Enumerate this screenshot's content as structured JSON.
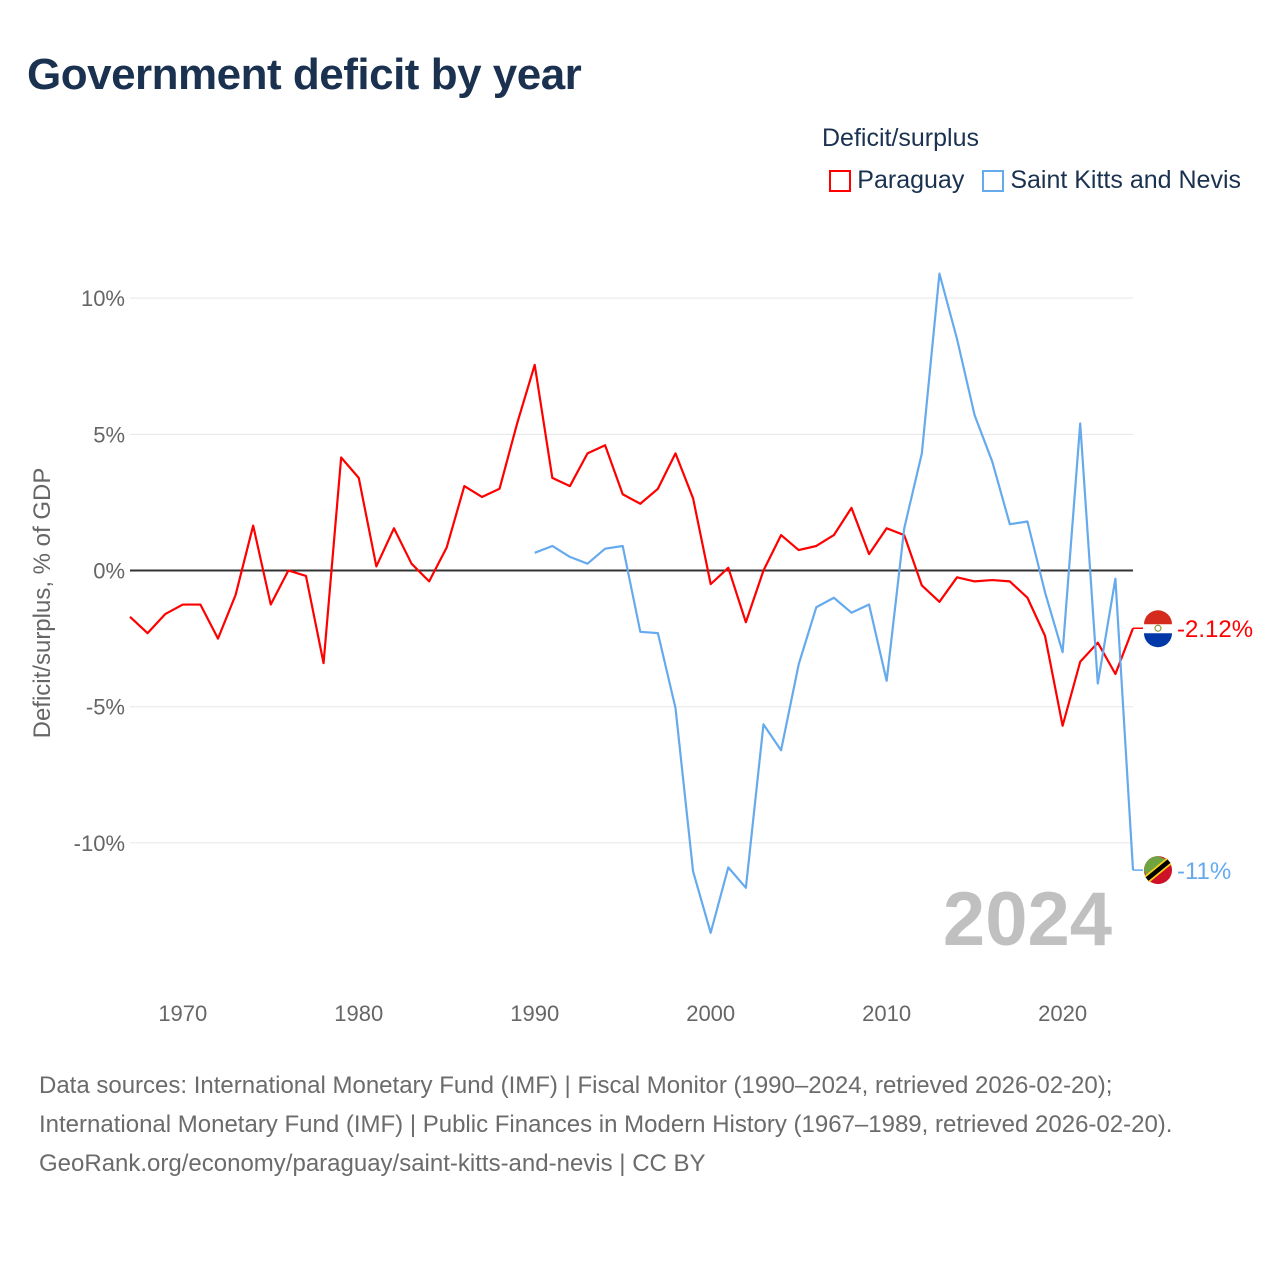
{
  "title": "Government deficit by year",
  "legend": {
    "title": "Deficit/surplus",
    "items": [
      {
        "label": "Paraguay",
        "color": "#ff0000"
      },
      {
        "label": "Saint Kitts and Nevis",
        "color": "#66aaee"
      }
    ]
  },
  "year_watermark": "2024",
  "chart_data": {
    "type": "line",
    "title": "Government deficit by year",
    "xlabel": "",
    "ylabel": "Deficit/surplus, % of GDP",
    "xlim": [
      1967,
      2024
    ],
    "ylim": [
      -14.3,
      11.4
    ],
    "x_ticks": [
      1970,
      1980,
      1990,
      2000,
      2010,
      2020
    ],
    "x_tick_labels": [
      "1970",
      "1980",
      "1990",
      "2000",
      "2010",
      "2020"
    ],
    "y_ticks": [
      10,
      5,
      0,
      -5,
      -10
    ],
    "y_tick_labels": [
      "10%",
      "5%",
      "0%",
      "-5%",
      "-10%"
    ],
    "grid": true,
    "legend_position": "top-right",
    "series": [
      {
        "name": "Paraguay",
        "color": "#ff0000",
        "start_year": 1967,
        "end_label": "-2.12%",
        "values": [
          -1.7,
          -2.3,
          -1.6,
          -1.25,
          -1.25,
          -2.5,
          -0.9,
          1.65,
          -1.25,
          0,
          -0.2,
          -3.4,
          4.15,
          3.4,
          0.15,
          1.55,
          0.25,
          -0.4,
          0.85,
          3.1,
          2.7,
          3.0,
          5.4,
          7.55,
          3.4,
          3.1,
          4.3,
          4.6,
          2.8,
          2.45,
          3.0,
          4.3,
          2.65,
          -0.5,
          0.1,
          -1.9,
          0,
          1.3,
          0.75,
          0.9,
          1.3,
          2.3,
          0.6,
          1.55,
          1.3,
          -0.55,
          -1.15,
          -0.25,
          -0.4,
          -0.35,
          -0.4,
          -1.0,
          -2.4,
          -5.7,
          -3.35,
          -2.65,
          -3.8,
          -2.12
        ]
      },
      {
        "name": "Saint Kitts and Nevis",
        "color": "#66aaee",
        "start_year": 1990,
        "end_label": "-11%",
        "values": [
          0.65,
          0.9,
          0.5,
          0.25,
          0.8,
          0.9,
          -2.25,
          -2.3,
          -5.05,
          -11.05,
          -13.3,
          -10.9,
          -11.65,
          -5.65,
          -6.6,
          -3.45,
          -1.35,
          -1.0,
          -1.55,
          -1.25,
          -4.05,
          1.55,
          4.3,
          10.9,
          8.5,
          5.7,
          4.0,
          1.7,
          1.8,
          -0.8,
          -3.0,
          5.4,
          -4.15,
          -0.3,
          -11.0
        ]
      }
    ]
  },
  "footer": {
    "sources": "Data sources: International Monetary Fund (IMF) | Fiscal Monitor (1990–2024, retrieved 2026-02-20); International Monetary Fund (IMF) | Public Finances in Modern History (1967–1989, retrieved 2026-02-20).",
    "link": "GeoRank.org/economy/paraguay/saint-kitts-and-nevis | CC BY"
  }
}
